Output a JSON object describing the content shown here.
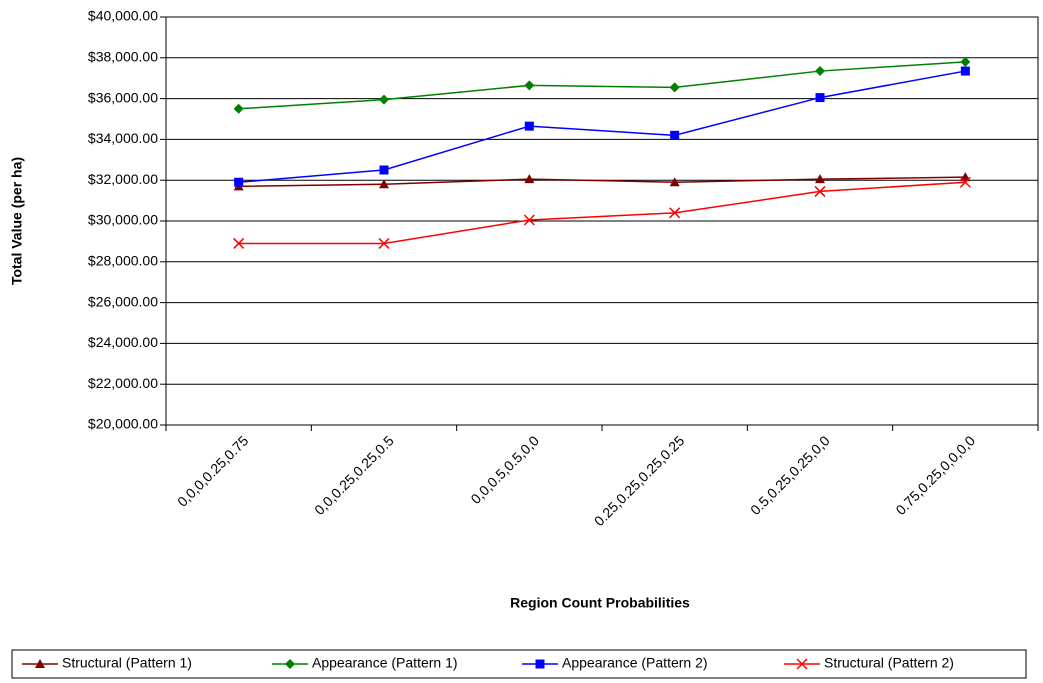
{
  "chart_data": {
    "type": "line",
    "x_label": "Region Count Probabilities",
    "y_label": "Total Value (per ha)",
    "categories": [
      "0,0,0,0.25,0.75",
      "0,0,0.25,0.25,0.5",
      "0,0,0.5,0.5,0,0",
      "0.25,0.25,0.25,0.25",
      "0.5,0.25,0.25,0,0",
      "0.75,0.25,0,0,0,0"
    ],
    "series": [
      {
        "name": "Structural (Pattern 1)",
        "color": "#800000",
        "marker": "triangle",
        "values": [
          31700,
          31800,
          32050,
          31900,
          32050,
          32150
        ]
      },
      {
        "name": "Appearance (Pattern 1)",
        "color": "#008000",
        "marker": "diamond",
        "values": [
          35500,
          35950,
          36650,
          36550,
          37350,
          37800
        ]
      },
      {
        "name": "Appearance (Pattern 2)",
        "color": "#0000ff",
        "marker": "square",
        "values": [
          31900,
          32500,
          34650,
          34200,
          36050,
          37350
        ]
      },
      {
        "name": "Structural (Pattern 2)",
        "color": "#ff0000",
        "marker": "x",
        "values": [
          28900,
          28900,
          30050,
          30400,
          31450,
          31900
        ]
      }
    ],
    "ylim": [
      20000,
      40000
    ],
    "yticks": [
      {
        "value": 20000,
        "label": "$20,000.00"
      },
      {
        "value": 22000,
        "label": "$22,000.00"
      },
      {
        "value": 24000,
        "label": "$24,000.00"
      },
      {
        "value": 26000,
        "label": "$26,000.00"
      },
      {
        "value": 28000,
        "label": "$28,000.00"
      },
      {
        "value": 30000,
        "label": "$30,000.00"
      },
      {
        "value": 32000,
        "label": "$32,000.00"
      },
      {
        "value": 34000,
        "label": "$34,000.00"
      },
      {
        "value": 36000,
        "label": "$36,000.00"
      },
      {
        "value": 38000,
        "label": "$38,000.00"
      },
      {
        "value": 40000,
        "label": "$40,000.00"
      }
    ],
    "grid": true,
    "legend": "bottom"
  }
}
